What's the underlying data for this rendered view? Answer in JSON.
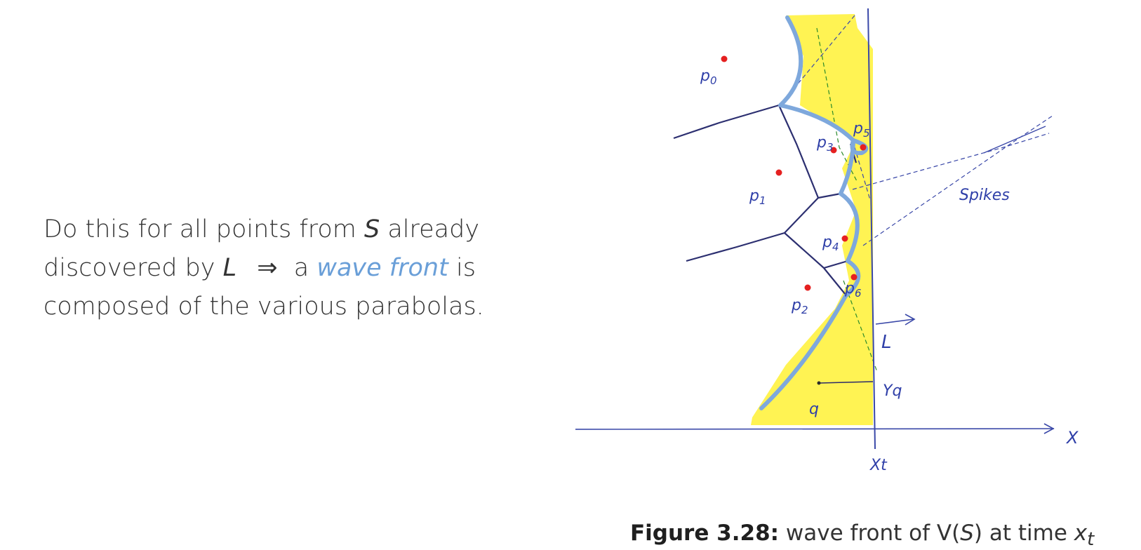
{
  "text": {
    "l1a": "Do this for all points from",
    "l1s": "S",
    "l1b": "already",
    "l2a": "discovered by",
    "l2l": "L",
    "l2arrow": "⇒",
    "l2b": "a",
    "l2accent": "wave front",
    "l2c": "is",
    "l3": "composed of the various parabolas."
  },
  "caption": {
    "label": "Figure 3.28:",
    "pre": "wave front of",
    "v": "V(",
    "s": "S",
    "close": ")",
    "at": "at time",
    "x": "x",
    "t": "t"
  },
  "sketch": {
    "points": [
      {
        "label": "p0",
        "sub": "0"
      },
      {
        "label": "p1",
        "sub": "1"
      },
      {
        "label": "p2",
        "sub": "2"
      },
      {
        "label": "p3",
        "sub": "3"
      },
      {
        "label": "p4",
        "sub": "4"
      },
      {
        "label": "p5",
        "sub": "5"
      },
      {
        "label": "p6",
        "sub": "6"
      }
    ],
    "spikes": "Spikes",
    "sweep_line": "L",
    "q": "q",
    "yq": "Yq",
    "x_axis": "X",
    "xt": "Xt"
  },
  "colors": {
    "accent": "#6a9fd8",
    "yellow": "#fff24a",
    "wavefront": "#7ea8dc",
    "ink": "#2f3fa8",
    "dot": "#e52020"
  }
}
